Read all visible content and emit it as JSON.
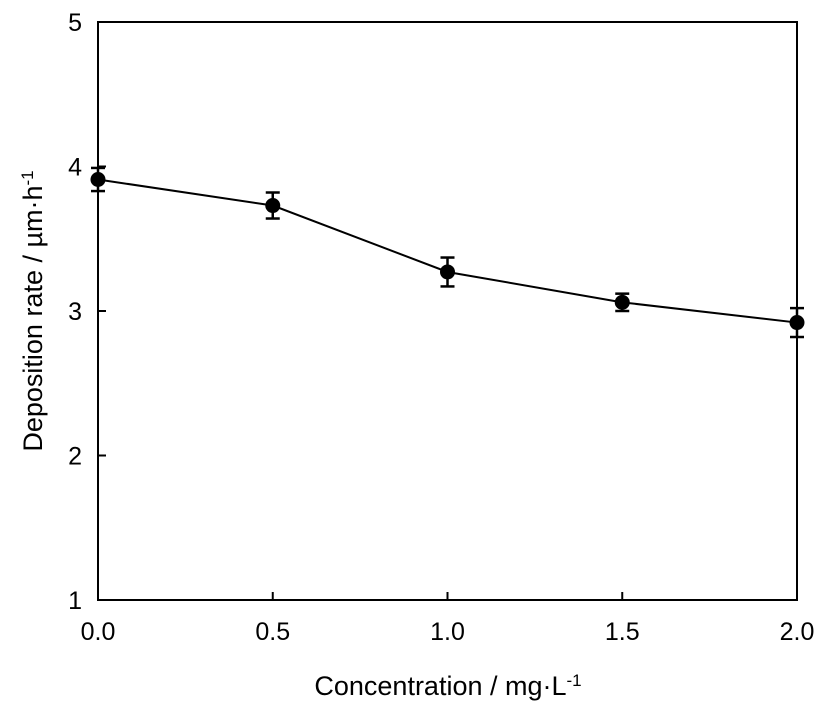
{
  "chart_data": {
    "type": "line",
    "title": "",
    "xlabel": {
      "main": "Concentration / mg·L",
      "sup": "-1"
    },
    "ylabel": {
      "main": "Deposition rate / µm·h",
      "sup": "-1"
    },
    "xlim": [
      0,
      2
    ],
    "ylim": [
      1,
      5
    ],
    "xticks": [
      0,
      0.5,
      1,
      1.5,
      2
    ],
    "xtick_labels": [
      "0.0",
      "0.5",
      "1.0",
      "1.5",
      "2.0"
    ],
    "yticks": [
      1,
      2,
      3,
      4,
      5
    ],
    "ytick_labels": [
      "1",
      "2",
      "3",
      "4",
      "5"
    ],
    "grid": false,
    "legend": "none",
    "series": [
      {
        "x": [
          0,
          0.5,
          1,
          1.5,
          2
        ],
        "y": [
          3.91,
          3.73,
          3.27,
          3.06,
          2.92
        ],
        "error": [
          0.08,
          0.09,
          0.1,
          0.06,
          0.1
        ],
        "marker": "filled-circle",
        "color": "#000000"
      }
    ]
  }
}
